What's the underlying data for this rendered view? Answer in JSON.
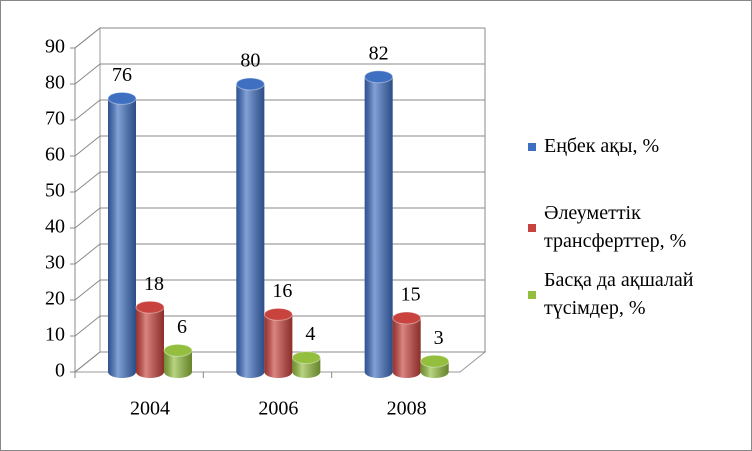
{
  "chart_data": {
    "type": "bar3d",
    "categories": [
      "2004",
      "2006",
      "2008"
    ],
    "series": [
      {
        "name": "Еңбек ақы, %",
        "color": "#3f6fc1",
        "values": [
          76,
          80,
          82
        ]
      },
      {
        "name": "Әлеуметтік трансферттер, %",
        "color": "#c8433e",
        "values": [
          18,
          16,
          15
        ]
      },
      {
        "name": "Басқа да ақшалай түсімдер, %",
        "color": "#93be3e",
        "values": [
          6,
          4,
          3
        ]
      }
    ],
    "ylim": [
      0,
      90
    ],
    "yticks": [
      0,
      10,
      20,
      30,
      40,
      50,
      60,
      70,
      80,
      90
    ],
    "grid": true,
    "legend": "right"
  }
}
